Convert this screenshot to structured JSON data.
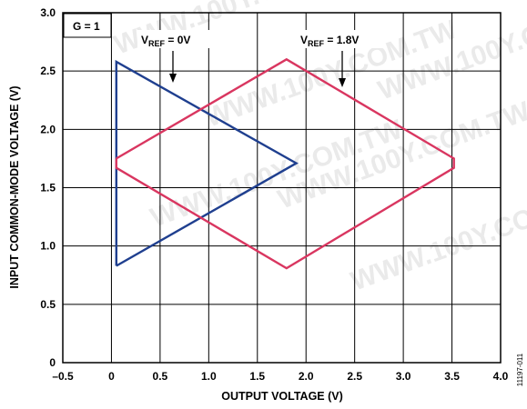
{
  "chart_data": {
    "type": "line",
    "xlabel": "OUTPUT VOLTAGE (V)",
    "ylabel": "INPUT COMMON-MODE VOLTAGE (V)",
    "xlim": [
      -0.5,
      4.0
    ],
    "ylim": [
      0,
      3.0
    ],
    "x_ticks": [
      "–0.5",
      "0",
      "0.5",
      "1.0",
      "1.5",
      "2.0",
      "2.5",
      "3.0",
      "3.5",
      "4.0"
    ],
    "y_ticks": [
      "0",
      "0.5",
      "1.0",
      "1.5",
      "2.0",
      "2.5",
      "3.0"
    ],
    "grid": true,
    "series": [
      {
        "color": "#1f3f8f",
        "x": [
          0.05,
          0.05,
          1.9,
          0.05
        ],
        "y": [
          0.83,
          2.58,
          1.71,
          0.83
        ]
      },
      {
        "color": "#d93660",
        "x": [
          0.05,
          1.8,
          3.52,
          3.52,
          1.8,
          0.05,
          0.05
        ],
        "y": [
          1.75,
          2.6,
          1.75,
          1.67,
          0.81,
          1.67,
          1.75
        ]
      }
    ],
    "annotations": {
      "gain": "G = 1",
      "vref0_main": "V",
      "vref0_sub": "REF",
      "vref0_value": " = 0V",
      "vref18_main": "V",
      "vref18_sub": "REF",
      "vref18_value": " = 1.8V"
    }
  },
  "figure_id": "11197-011",
  "watermark": "WWW.100Y.COM.TW"
}
